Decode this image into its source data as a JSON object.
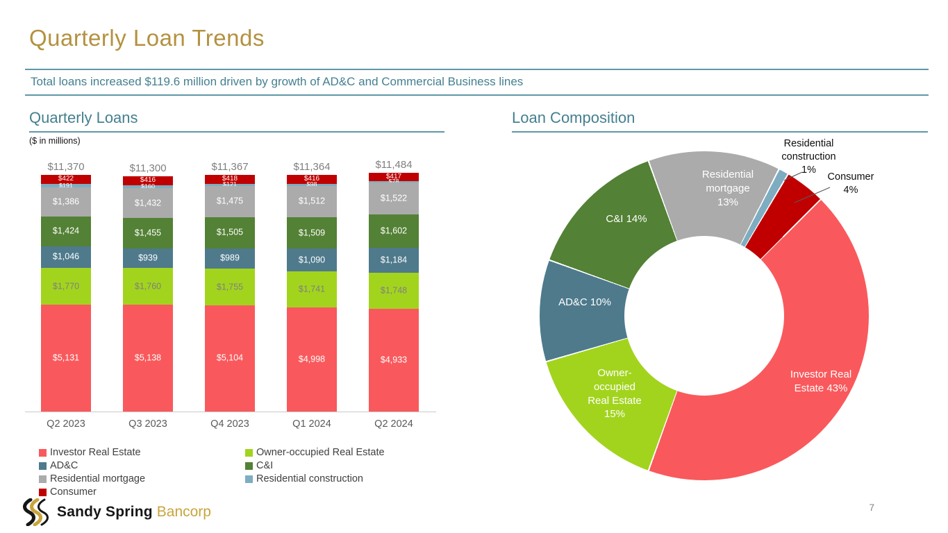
{
  "title": "Quarterly Loan Trends",
  "subtitle": "Total loans increased $119.6 million driven by growth of AD&C and Commercial Business lines",
  "left_section": {
    "heading": "Quarterly Loans",
    "units_note": "($ in millions)"
  },
  "right_section": {
    "heading": "Loan Composition",
    "donut_labels": {
      "investor": "Investor Real\nEstate 43%",
      "owner": "Owner-\noccupied\nReal Estate\n15%",
      "adc": "AD&C 10%",
      "ci": "C&I 14%",
      "res_mortgage": "Residential\nmortgage\n13%",
      "res_construction": "Residential\nconstruction\n1%",
      "consumer": "Consumer\n4%"
    }
  },
  "footer": {
    "logo_text_black": "Sandy Spring",
    "logo_text_gold": "Bancorp",
    "page_number": "7"
  },
  "colors": {
    "title_gold": "#B3913F",
    "teal_text": "#44808F",
    "teal_rule": "#5E97A5",
    "total_label_gray": "#7F7F7F"
  },
  "chart_data": [
    {
      "type": "bar",
      "stacked": true,
      "title": "Quarterly Loans",
      "ylabel": "($ in millions)",
      "categories": [
        "Q2 2023",
        "Q3 2023",
        "Q4 2023",
        "Q1 2024",
        "Q2 2024"
      ],
      "totals": [
        11370,
        11300,
        11367,
        11364,
        11484
      ],
      "series": [
        {
          "name": "Investor Real Estate",
          "color": "#F9595C",
          "label_color": "#FFFFFF",
          "values": [
            5131,
            5138,
            5104,
            4998,
            4933
          ]
        },
        {
          "name": "Owner-occupied Real Estate",
          "color": "#A2D41E",
          "label_color": "#7F7F7F",
          "values": [
            1770,
            1760,
            1755,
            1741,
            1748
          ]
        },
        {
          "name": "AD&C",
          "color": "#4E7A8C",
          "label_color": "#FFFFFF",
          "values": [
            1046,
            939,
            989,
            1090,
            1184
          ]
        },
        {
          "name": "C&I",
          "color": "#538135",
          "label_color": "#FFFFFF",
          "values": [
            1424,
            1455,
            1505,
            1509,
            1602
          ]
        },
        {
          "name": "Residential mortgage",
          "color": "#ABABAB",
          "label_color": "#FFFFFF",
          "values": [
            1386,
            1432,
            1475,
            1512,
            1522
          ]
        },
        {
          "name": "Residential construction",
          "color": "#7EADC1",
          "label_color": "#FFFFFF",
          "values": [
            191,
            160,
            121,
            98,
            78
          ]
        },
        {
          "name": "Consumer",
          "color": "#C00000",
          "label_color": "#FFFFFF",
          "values": [
            422,
            416,
            418,
            416,
            417
          ]
        }
      ],
      "legend_position": "bottom"
    },
    {
      "type": "pie",
      "donut": true,
      "title": "Loan Composition",
      "start_angle_deg": 45,
      "slices": [
        {
          "name": "Investor Real Estate",
          "pct": 43,
          "color": "#F9595C"
        },
        {
          "name": "Owner-occupied Real Estate",
          "pct": 15,
          "color": "#A2D41E"
        },
        {
          "name": "AD&C",
          "pct": 10,
          "color": "#4E7A8C"
        },
        {
          "name": "C&I",
          "pct": 14,
          "color": "#538135"
        },
        {
          "name": "Residential mortgage",
          "pct": 13,
          "color": "#ABABAB"
        },
        {
          "name": "Residential construction",
          "pct": 1,
          "color": "#7EADC1"
        },
        {
          "name": "Consumer",
          "pct": 4,
          "color": "#C00000"
        }
      ]
    }
  ]
}
